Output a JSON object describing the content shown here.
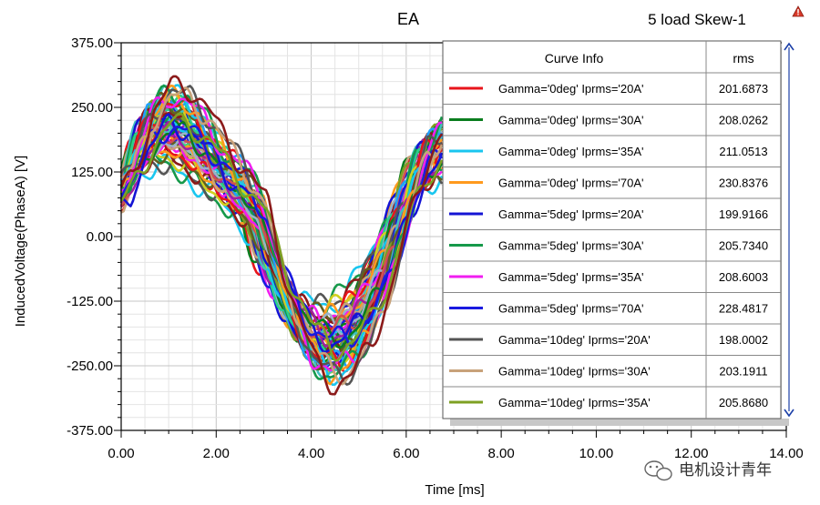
{
  "chart_data": {
    "type": "line",
    "title": "EA",
    "subtitle": "5 load Skew-1",
    "xlabel": "Time [ms]",
    "ylabel": "InducedVoltage(PhaseA) [V]",
    "xlim": [
      0,
      14
    ],
    "ylim": [
      -375,
      375
    ],
    "x_ticks": [
      "0.00",
      "2.00",
      "4.00",
      "6.00",
      "8.00",
      "10.00",
      "12.00",
      "14.00"
    ],
    "y_ticks": [
      "375.00",
      "250.00",
      "125.00",
      "0.00",
      "-125.00",
      "-250.00",
      "-375.00"
    ],
    "grid": true,
    "legend": {
      "placement": "top-right",
      "header_curve": "Curve Info",
      "header_value": "rms",
      "entries": [
        {
          "label": "Gamma='0deg' Iprms='20A'",
          "rms": "201.6873",
          "color": "#e8141b"
        },
        {
          "label": "Gamma='0deg' Iprms='30A'",
          "rms": "208.0262",
          "color": "#0a7d1e"
        },
        {
          "label": "Gamma='0deg' Iprms='35A'",
          "rms": "211.0513",
          "color": "#19c6ef"
        },
        {
          "label": "Gamma='0deg' Iprms='70A'",
          "rms": "230.8376",
          "color": "#ff9a1e"
        },
        {
          "label": "Gamma='5deg' Iprms='20A'",
          "rms": "199.9166",
          "color": "#1414d4"
        },
        {
          "label": "Gamma='5deg' Iprms='30A'",
          "rms": "205.7340",
          "color": "#16994a"
        },
        {
          "label": "Gamma='5deg' Iprms='35A'",
          "rms": "208.6003",
          "color": "#f01ef0"
        },
        {
          "label": "Gamma='5deg' Iprms='70A'",
          "rms": "228.4817",
          "color": "#1a1ae0"
        },
        {
          "label": "Gamma='10deg' Iprms='20A'",
          "rms": "198.0002",
          "color": "#555555"
        },
        {
          "label": "Gamma='10deg' Iprms='30A'",
          "rms": "203.1911",
          "color": "#c8a27a"
        },
        {
          "label": "Gamma='10deg' Iprms='35A'",
          "rms": "205.8680",
          "color": "#7ea023"
        }
      ]
    },
    "series_shape": {
      "x": [
        0,
        0.4,
        0.8,
        1.2,
        1.6,
        2.0,
        2.4,
        2.8,
        3.0,
        3.4,
        3.8,
        4.2,
        4.6,
        5.0,
        5.4,
        5.8,
        6.2,
        6.6,
        6.75
      ],
      "y": [
        120,
        220,
        265,
        255,
        215,
        160,
        120,
        60,
        -20,
        -130,
        -220,
        -255,
        -240,
        -190,
        -100,
        30,
        150,
        200,
        215
      ]
    },
    "extra_series_colors": [
      "#8b1a1a",
      "#9ab3c8",
      "#2ad08a",
      "#d0d020",
      "#a020a0",
      "#40c0c0",
      "#606020",
      "#d05050",
      "#20a0ff"
    ]
  },
  "watermark": "电机设计青年"
}
